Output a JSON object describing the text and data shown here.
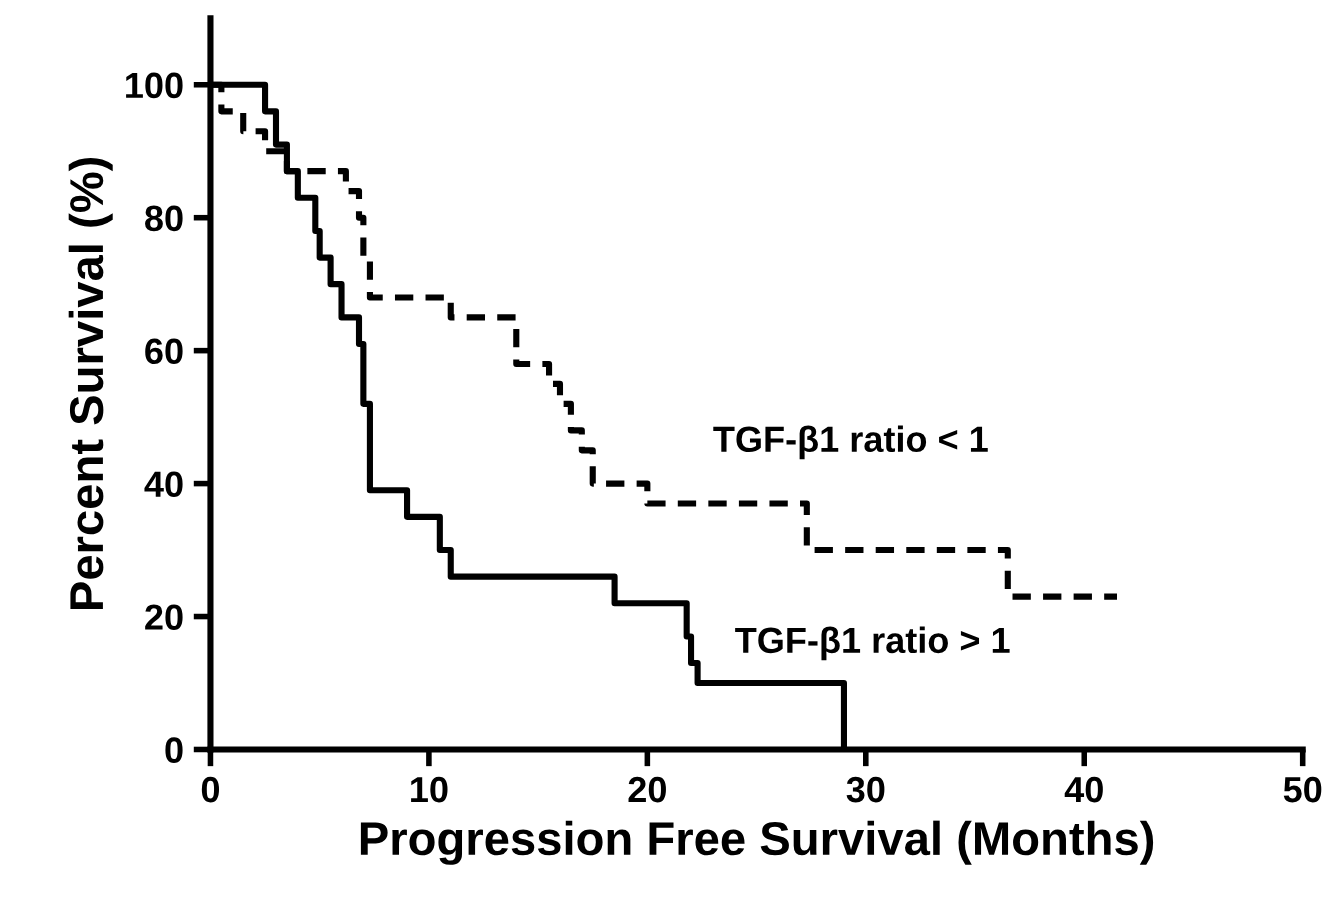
{
  "chart_data": {
    "type": "step",
    "xlabel": "Progression Free Survival (Months)",
    "ylabel": "Percent Survival (%)",
    "xlim": [
      0,
      50
    ],
    "ylim": [
      0,
      110
    ],
    "xticks": [
      0,
      10,
      20,
      30,
      40,
      50
    ],
    "yticks": [
      0,
      20,
      40,
      60,
      80,
      100
    ],
    "grid": false,
    "legend": false,
    "series": [
      {
        "name": "TGF-β1 ratio > 1",
        "color": "#000000",
        "line_style": "solid",
        "x": [
          0,
          2.5,
          3,
          3.5,
          4,
          4.8,
          5,
          5.5,
          6,
          6.8,
          7,
          7.3,
          9,
          10.5,
          11,
          18.5,
          21.8,
          22,
          22.3,
          29
        ],
        "values": [
          100,
          96,
          91,
          87,
          83,
          78,
          74,
          70,
          65,
          61,
          52,
          39,
          35,
          30,
          26,
          22,
          17,
          13,
          10,
          0
        ]
      },
      {
        "name": "TGF-β1 ratio < 1",
        "color": "#000000",
        "line_style": "dashed",
        "x": [
          0,
          0.5,
          1.5,
          2.5,
          3.5,
          6.2,
          6.8,
          7,
          7.3,
          11,
          14,
          15.5,
          16,
          16.5,
          17,
          17.5,
          20,
          27.3,
          36.5,
          41.5
        ],
        "values": [
          100,
          96,
          93,
          90,
          87,
          84,
          80,
          74,
          68,
          65,
          58,
          55,
          52,
          48,
          45,
          40,
          37,
          30,
          23,
          23
        ]
      }
    ]
  }
}
